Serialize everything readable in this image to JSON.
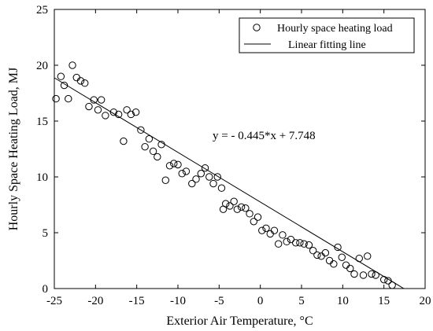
{
  "chart_data": {
    "type": "scatter",
    "title": "",
    "xlabel": "Exterior Air Temperature, °C",
    "ylabel": "Hourly Space Heating Load, MJ",
    "xlim": [
      -25,
      20
    ],
    "ylim": [
      0,
      25
    ],
    "x_ticks": [
      "-25",
      "-20",
      "-15",
      "-10",
      "-5",
      "0",
      "5",
      "10",
      "15",
      "20"
    ],
    "y_ticks": [
      "0",
      "5",
      "10",
      "15",
      "20",
      "25"
    ],
    "grid": false,
    "legend_position": "top-right",
    "series": [
      {
        "name": "Hourly space heating load",
        "marker": "open-circle",
        "points": [
          {
            "x": -24.8,
            "y": 17.0
          },
          {
            "x": -24.2,
            "y": 19.0
          },
          {
            "x": -23.8,
            "y": 18.2
          },
          {
            "x": -23.3,
            "y": 17.0
          },
          {
            "x": -22.8,
            "y": 20.0
          },
          {
            "x": -22.3,
            "y": 18.9
          },
          {
            "x": -21.8,
            "y": 18.6
          },
          {
            "x": -21.3,
            "y": 18.4
          },
          {
            "x": -20.8,
            "y": 16.3
          },
          {
            "x": -20.2,
            "y": 16.9
          },
          {
            "x": -19.7,
            "y": 16.0
          },
          {
            "x": -19.3,
            "y": 16.9
          },
          {
            "x": -18.8,
            "y": 15.5
          },
          {
            "x": -17.8,
            "y": 15.8
          },
          {
            "x": -17.2,
            "y": 15.6
          },
          {
            "x": -16.6,
            "y": 13.2
          },
          {
            "x": -16.2,
            "y": 16.0
          },
          {
            "x": -15.7,
            "y": 15.6
          },
          {
            "x": -15.1,
            "y": 15.8
          },
          {
            "x": -14.5,
            "y": 14.2
          },
          {
            "x": -14.0,
            "y": 12.7
          },
          {
            "x": -13.5,
            "y": 13.4
          },
          {
            "x": -13.0,
            "y": 12.3
          },
          {
            "x": -12.5,
            "y": 11.8
          },
          {
            "x": -12.0,
            "y": 12.9
          },
          {
            "x": -11.5,
            "y": 9.7
          },
          {
            "x": -11.0,
            "y": 11.0
          },
          {
            "x": -10.5,
            "y": 11.2
          },
          {
            "x": -10.0,
            "y": 11.1
          },
          {
            "x": -9.5,
            "y": 10.3
          },
          {
            "x": -9.0,
            "y": 10.5
          },
          {
            "x": -8.3,
            "y": 9.4
          },
          {
            "x": -7.8,
            "y": 9.8
          },
          {
            "x": -7.2,
            "y": 10.3
          },
          {
            "x": -6.7,
            "y": 10.8
          },
          {
            "x": -6.2,
            "y": 10.0
          },
          {
            "x": -5.7,
            "y": 9.4
          },
          {
            "x": -5.2,
            "y": 10.0
          },
          {
            "x": -4.7,
            "y": 9.0
          },
          {
            "x": -4.5,
            "y": 7.1
          },
          {
            "x": -4.2,
            "y": 7.6
          },
          {
            "x": -3.7,
            "y": 7.4
          },
          {
            "x": -3.2,
            "y": 7.8
          },
          {
            "x": -2.8,
            "y": 7.1
          },
          {
            "x": -2.3,
            "y": 7.3
          },
          {
            "x": -1.8,
            "y": 7.2
          },
          {
            "x": -1.3,
            "y": 6.7
          },
          {
            "x": -0.8,
            "y": 6.0
          },
          {
            "x": -0.3,
            "y": 6.4
          },
          {
            "x": 0.2,
            "y": 5.2
          },
          {
            "x": 0.7,
            "y": 5.4
          },
          {
            "x": 1.2,
            "y": 4.9
          },
          {
            "x": 1.7,
            "y": 5.2
          },
          {
            "x": 2.2,
            "y": 4.0
          },
          {
            "x": 2.7,
            "y": 4.8
          },
          {
            "x": 3.2,
            "y": 4.2
          },
          {
            "x": 3.7,
            "y": 4.4
          },
          {
            "x": 4.3,
            "y": 4.1
          },
          {
            "x": 4.8,
            "y": 4.1
          },
          {
            "x": 5.3,
            "y": 4.0
          },
          {
            "x": 5.9,
            "y": 3.9
          },
          {
            "x": 6.4,
            "y": 3.4
          },
          {
            "x": 6.9,
            "y": 3.0
          },
          {
            "x": 7.4,
            "y": 2.9
          },
          {
            "x": 7.9,
            "y": 3.2
          },
          {
            "x": 8.4,
            "y": 2.5
          },
          {
            "x": 8.9,
            "y": 2.2
          },
          {
            "x": 9.4,
            "y": 3.7
          },
          {
            "x": 9.9,
            "y": 2.8
          },
          {
            "x": 10.4,
            "y": 2.1
          },
          {
            "x": 10.9,
            "y": 1.8
          },
          {
            "x": 11.4,
            "y": 1.3
          },
          {
            "x": 12.0,
            "y": 2.7
          },
          {
            "x": 12.5,
            "y": 1.2
          },
          {
            "x": 13.0,
            "y": 2.9
          },
          {
            "x": 13.5,
            "y": 1.3
          },
          {
            "x": 14.0,
            "y": 1.2
          },
          {
            "x": 15.0,
            "y": 0.8
          },
          {
            "x": 15.5,
            "y": 0.7
          },
          {
            "x": 16.0,
            "y": 0.3
          }
        ]
      },
      {
        "name": "Linear fitting line",
        "marker": "line",
        "slope": -0.445,
        "intercept": 7.748,
        "x_range": [
          -25,
          17.4
        ]
      }
    ],
    "annotations": [
      {
        "text": "y = - 0.445*x + 7.748",
        "x": -5,
        "y": 11.0
      }
    ]
  }
}
